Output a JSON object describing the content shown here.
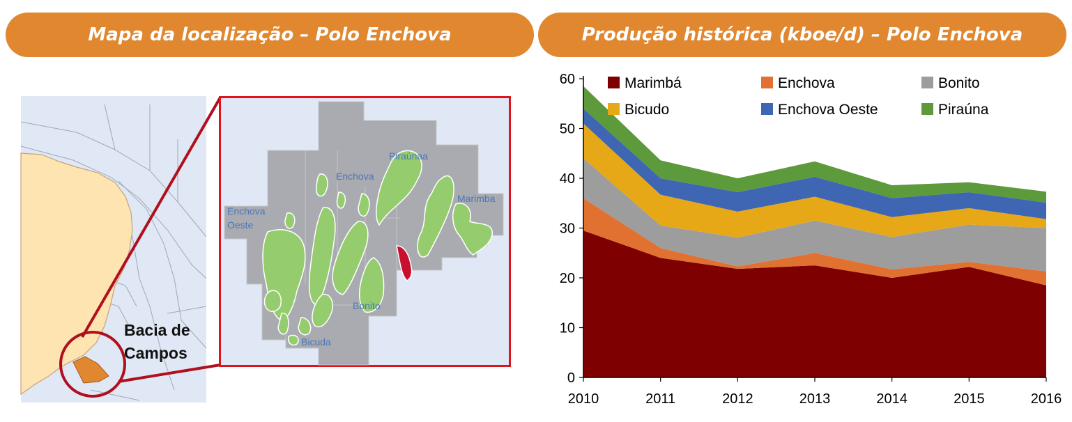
{
  "banners": {
    "left": "Mapa da localização – Polo Enchova",
    "right": "Produção histórica (kboe/d) – Polo Enchova"
  },
  "map": {
    "basin_label": "Bacia de Campos",
    "field_labels": {
      "enchova": "Enchova",
      "piraunaa": "Piraúnaa",
      "marimba": "Marimba",
      "enchova_oeste_1": "Enchova",
      "enchova_oeste_2": "Oeste",
      "bonito": "Bonito",
      "bicuda": "Bicuda"
    },
    "colors": {
      "ocean": "#dfe8f4",
      "land": "#fde4b0",
      "block": "#a9abb1",
      "field": "#95cd6e",
      "highlight": "#c8102e",
      "basin": "#e0872f",
      "frame": "#e0121b",
      "callout": "#b00f1e"
    }
  },
  "chart_data": {
    "type": "area",
    "stacked": true,
    "x": [
      2010,
      2011,
      2012,
      2013,
      2014,
      2015,
      2016
    ],
    "ylim": [
      0,
      60
    ],
    "yticks": [
      0,
      10,
      20,
      30,
      40,
      50,
      60
    ],
    "legend_position": "top",
    "series": [
      {
        "name": "Marimbá",
        "color": "#7f0000",
        "values": [
          29.5,
          24.0,
          21.8,
          22.5,
          20.0,
          22.2,
          18.5
        ]
      },
      {
        "name": "Enchova",
        "color": "#e07130",
        "values": [
          6.5,
          2.0,
          0.5,
          2.5,
          1.7,
          1.0,
          2.8
        ]
      },
      {
        "name": "Bonito",
        "color": "#9d9d9d",
        "values": [
          8.0,
          4.5,
          5.8,
          6.5,
          6.5,
          7.5,
          8.7
        ]
      },
      {
        "name": "Bicudo",
        "color": "#e6a817",
        "values": [
          7.0,
          6.2,
          5.2,
          4.8,
          4.0,
          3.3,
          1.8
        ]
      },
      {
        "name": "Enchova Oeste",
        "color": "#3e66b2",
        "values": [
          3.0,
          3.3,
          3.9,
          4.0,
          3.8,
          3.2,
          3.3
        ]
      },
      {
        "name": "Piraúna",
        "color": "#5d9a3c",
        "values": [
          4.5,
          3.6,
          2.8,
          3.1,
          2.6,
          2.0,
          2.2
        ]
      }
    ]
  }
}
